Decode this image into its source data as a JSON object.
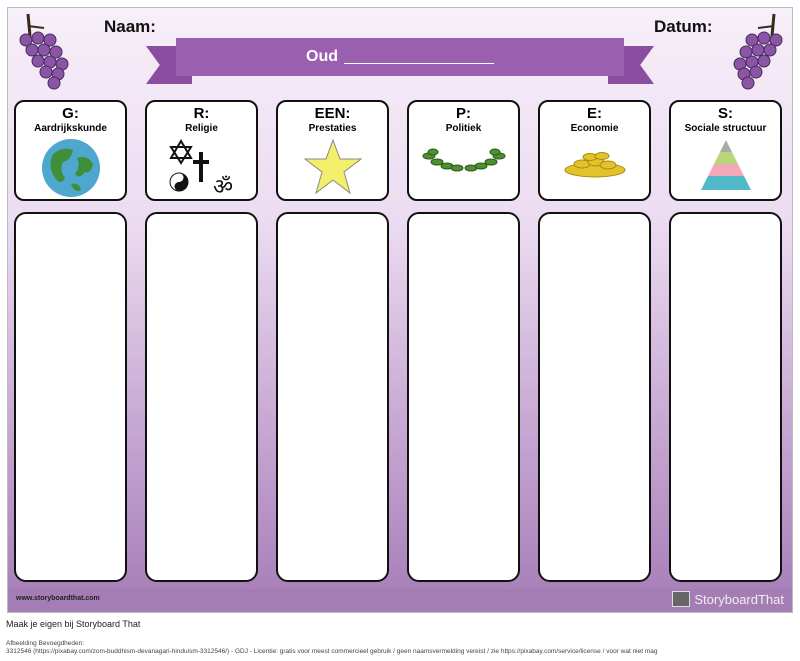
{
  "header": {
    "name_label": "Naam:",
    "date_label": "Datum:",
    "banner_title": "Oud"
  },
  "columns": [
    {
      "letter": "G:",
      "subject": "Aardrijkskunde",
      "icon": "globe-icon"
    },
    {
      "letter": "R:",
      "subject": "Religie",
      "icon": "religion-symbols-icon"
    },
    {
      "letter": "EEN:",
      "subject": "Prestaties",
      "icon": "star-icon"
    },
    {
      "letter": "P:",
      "subject": "Politiek",
      "icon": "laurel-wreath-icon"
    },
    {
      "letter": "E:",
      "subject": "Economie",
      "icon": "gold-coins-icon"
    },
    {
      "letter": "S:",
      "subject": "Sociale structuur",
      "icon": "pyramid-icon"
    }
  ],
  "footer": {
    "url": "www.storyboardthat.com",
    "logo": "StoryboardThat"
  },
  "make_own": "Maak je eigen bij Storyboard That",
  "attribution": {
    "title": "Afbeelding Bevoegdheden:",
    "text": "3312546 (https://pixabay.com/zom-buddhism-devanagari-hinduism-3312546/) - GDJ - Licentie: gratis voor meest commercieel gebruik / geen naamsvermelding vereist / zie https://pixabay.com/service/license / voor wat niet mag"
  },
  "colors": {
    "banner": "#9b5fb0",
    "footer": "#a47db4",
    "grape": "#8a55a6"
  }
}
